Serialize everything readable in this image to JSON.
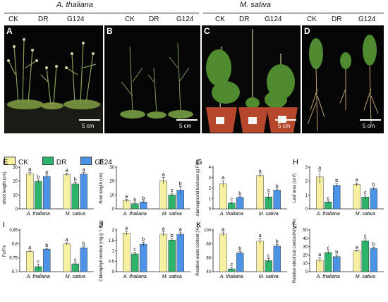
{
  "header": {
    "group_left": "A. thaliana",
    "group_right": "M. sativa",
    "treatments": [
      "CK",
      "DR",
      "G124"
    ]
  },
  "photos": [
    {
      "panel": "A",
      "scale": "5 cm"
    },
    {
      "panel": "B",
      "scale": "5 cm"
    },
    {
      "panel": "C",
      "scale": "5 cm"
    },
    {
      "panel": "D",
      "scale": "5 cm"
    }
  ],
  "legend": [
    {
      "label": "CK",
      "color": "#f7f0a0"
    },
    {
      "label": "DR",
      "color": "#2db36a"
    },
    {
      "label": "G124",
      "color": "#4c93e6"
    }
  ],
  "chart_data": [
    {
      "panel": "E",
      "type": "bar",
      "ylabel": "shoot length (cm)",
      "ylim": [
        0,
        30
      ],
      "ticks": [
        0,
        10,
        20,
        30
      ],
      "categories": [
        "A. thaliana",
        "M. sativa"
      ],
      "series": [
        {
          "name": "CK",
          "values": [
            25.2,
            24.6
          ],
          "err": [
            1.2,
            1.0
          ],
          "letters": [
            "a",
            "a"
          ]
        },
        {
          "name": "DR",
          "values": [
            19.8,
            17.9
          ],
          "err": [
            1.0,
            1.2
          ],
          "letters": [
            "b",
            "b"
          ]
        },
        {
          "name": "G124",
          "values": [
            23.4,
            25.1
          ],
          "err": [
            1.1,
            1.0
          ],
          "letters": [
            "a",
            "a"
          ]
        }
      ]
    },
    {
      "panel": "F",
      "type": "bar",
      "ylabel": "Root length (cm)",
      "ylim": [
        0,
        30
      ],
      "ticks": [
        0,
        10,
        20,
        30
      ],
      "categories": [
        "A. thaliana",
        "M. sativa"
      ],
      "series": [
        {
          "name": "CK",
          "values": [
            5.9,
            20.3
          ],
          "err": [
            0.9,
            2.3
          ],
          "letters": [
            "a",
            "a"
          ]
        },
        {
          "name": "DR",
          "values": [
            3.7,
            10.1
          ],
          "err": [
            0.6,
            1.1
          ],
          "letters": [
            "b",
            "c"
          ]
        },
        {
          "name": "G124",
          "values": [
            5.0,
            13.5
          ],
          "err": [
            0.7,
            2.6
          ],
          "letters": [
            "b",
            "b"
          ]
        }
      ]
    },
    {
      "panel": "G",
      "type": "bar",
      "ylabel": "Aboveground biomass (g FW)",
      "ylim": [
        0,
        4
      ],
      "ticks": [
        0,
        1,
        2,
        3,
        4
      ],
      "categories": [
        "A. thaliana",
        "M. sativa"
      ],
      "series": [
        {
          "name": "CK",
          "values": [
            2.4,
            3.2
          ],
          "err": [
            0.3,
            0.15
          ],
          "letters": [
            "a",
            "a"
          ]
        },
        {
          "name": "DR",
          "values": [
            0.55,
            1.15
          ],
          "err": [
            0.1,
            0.35
          ],
          "letters": [
            "c",
            "c"
          ]
        },
        {
          "name": "G124",
          "values": [
            1.1,
            1.8
          ],
          "err": [
            0.07,
            0.1
          ],
          "letters": [
            "b",
            "b"
          ]
        }
      ]
    },
    {
      "panel": "H",
      "type": "bar",
      "ylabel": "Leaf area (cm²)",
      "ylim": [
        0,
        3
      ],
      "ticks": [
        0,
        1,
        2,
        3
      ],
      "categories": [
        "A. thaliana",
        "M. sativa"
      ],
      "series": [
        {
          "name": "CK",
          "values": [
            2.3,
            1.75
          ],
          "err": [
            0.45,
            0.12
          ],
          "letters": [
            "a",
            "a"
          ]
        },
        {
          "name": "DR",
          "values": [
            0.5,
            0.85
          ],
          "err": [
            0.07,
            0.12
          ],
          "letters": [
            "c",
            "c"
          ]
        },
        {
          "name": "G124",
          "values": [
            1.7,
            1.45
          ],
          "err": [
            0.12,
            0.08
          ],
          "letters": [
            "b",
            "b"
          ]
        }
      ]
    },
    {
      "panel": "I",
      "type": "bar",
      "ylabel": "Fv/Fm",
      "ylim": [
        0.7,
        0.85
      ],
      "ticks": [
        0.7,
        0.75,
        0.8,
        0.85
      ],
      "categories": [
        "A. thaliana",
        "M. sativa"
      ],
      "series": [
        {
          "name": "CK",
          "values": [
            0.773,
            0.8
          ],
          "err": [
            0.003,
            0.004
          ],
          "letters": [
            "a",
            "a"
          ]
        },
        {
          "name": "DR",
          "values": [
            0.718,
            0.728
          ],
          "err": [
            0.008,
            0.004
          ],
          "letters": [
            "c",
            "c"
          ]
        },
        {
          "name": "G124",
          "values": [
            0.781,
            0.786
          ],
          "err": [
            0.003,
            0.004
          ],
          "letters": [
            "b",
            "b"
          ]
        }
      ]
    },
    {
      "panel": "J",
      "type": "bar",
      "ylabel": "Chlorophyll content (mg g⁻¹ FW)",
      "ylim": [
        0,
        2.0
      ],
      "ticks": [
        0,
        0.5,
        1.0,
        1.5,
        2.0
      ],
      "categories": [
        "A. thaliana",
        "M. sativa"
      ],
      "series": [
        {
          "name": "CK",
          "values": [
            1.85,
            1.8
          ],
          "err": [
            0.1,
            0.12
          ],
          "letters": [
            "a",
            "a"
          ]
        },
        {
          "name": "DR",
          "values": [
            0.85,
            1.52
          ],
          "err": [
            0.08,
            0.08
          ],
          "letters": [
            "c",
            "b"
          ]
        },
        {
          "name": "G124",
          "values": [
            1.32,
            1.8
          ],
          "err": [
            0.1,
            0.1
          ],
          "letters": [
            "b",
            "a"
          ]
        }
      ]
    },
    {
      "panel": "K",
      "type": "bar",
      "ylabel": "Relative water content (%)",
      "ylim": [
        40,
        100
      ],
      "ticks": [
        40,
        60,
        80,
        100
      ],
      "categories": [
        "A. thaliana",
        "M. sativa"
      ],
      "series": [
        {
          "name": "CK",
          "values": [
            94,
            84
          ],
          "err": [
            3,
            4
          ],
          "letters": [
            "a",
            "a"
          ]
        },
        {
          "name": "DR",
          "values": [
            44,
            56
          ],
          "err": [
            2,
            3
          ],
          "letters": [
            "c",
            "c"
          ]
        },
        {
          "name": "G124",
          "values": [
            67,
            77
          ],
          "err": [
            2,
            2
          ],
          "letters": [
            "b",
            "b"
          ]
        }
      ]
    },
    {
      "panel": "L",
      "type": "bar",
      "ylabel": "Relative electrical conductivity (%)",
      "ylim": [
        0,
        50
      ],
      "ticks": [
        0,
        10,
        20,
        30,
        40,
        50
      ],
      "categories": [
        "A. thaliana",
        "M. sativa"
      ],
      "series": [
        {
          "name": "CK",
          "values": [
            14,
            25
          ],
          "err": [
            3,
            1
          ],
          "letters": [
            "a",
            "a"
          ]
        },
        {
          "name": "DR",
          "values": [
            23,
            37
          ],
          "err": [
            2,
            2.5
          ],
          "letters": [
            "c",
            "c"
          ]
        },
        {
          "name": "G124",
          "values": [
            18,
            28
          ],
          "err": [
            2,
            1.5
          ],
          "letters": [
            "b",
            "b"
          ]
        }
      ]
    }
  ]
}
